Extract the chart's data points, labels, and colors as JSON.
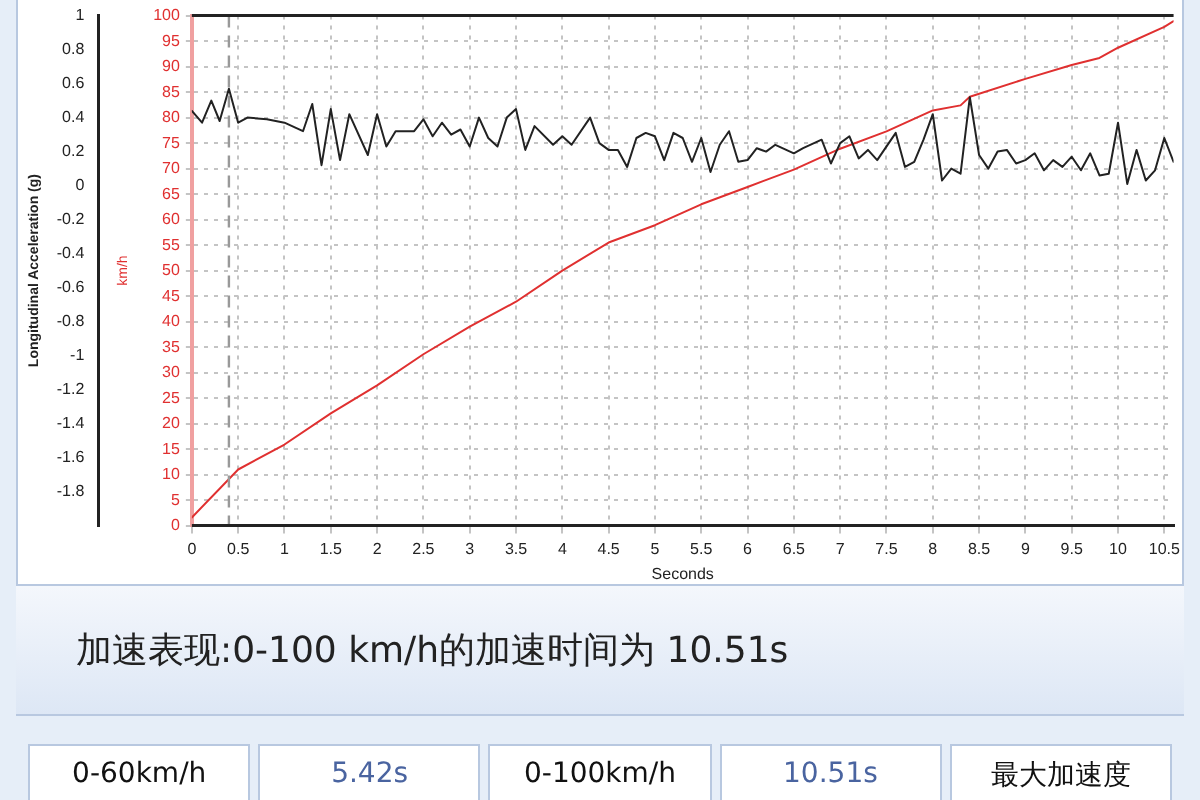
{
  "chart_data": {
    "type": "line",
    "xlabel": "Seconds",
    "ylabel": "Longitudinal Acceleration (g)",
    "y2label": "km/h",
    "xlim": [
      0,
      10.6
    ],
    "xticks": [
      0,
      0.5,
      1,
      1.5,
      2,
      2.5,
      3,
      3.5,
      4,
      4.5,
      5,
      5.5,
      6,
      6.5,
      7,
      7.5,
      8,
      8.5,
      9,
      9.5,
      10,
      10.5
    ],
    "ylim": [
      -2,
      1
    ],
    "yticks": [
      1,
      0.8,
      0.6,
      0.4,
      0.2,
      0,
      -0.2,
      -0.4,
      -0.6,
      -0.8,
      -1,
      -1.2,
      -1.4,
      -1.6,
      -1.8
    ],
    "y2lim": [
      0,
      100
    ],
    "y2ticks": [
      0,
      5,
      10,
      15,
      20,
      25,
      30,
      35,
      40,
      45,
      50,
      55,
      60,
      65,
      70,
      75,
      80,
      85,
      90,
      95,
      100
    ],
    "grid": true,
    "legend": false,
    "marker": "none",
    "line_style": "solid",
    "series": [
      {
        "color": "#222222",
        "axis": "y",
        "x": [
          0,
          0.11,
          0.21,
          0.3,
          0.4,
          0.5,
          0.6,
          0.81,
          1,
          1.2,
          1.3,
          1.4,
          1.5,
          1.6,
          1.7,
          1.9,
          2,
          2.1,
          2.2,
          2.4,
          2.5,
          2.6,
          2.7,
          2.8,
          2.9,
          3,
          3.1,
          3.2,
          3.3,
          3.4,
          3.5,
          3.6,
          3.7,
          3.9,
          4,
          4.1,
          4.3,
          4.4,
          4.5,
          4.6,
          4.7,
          4.8,
          4.9,
          5,
          5.1,
          5.2,
          5.3,
          5.4,
          5.5,
          5.6,
          5.7,
          5.8,
          5.9,
          6,
          6.1,
          6.2,
          6.3,
          6.5,
          6.6,
          6.8,
          6.9,
          7,
          7.1,
          7.2,
          7.3,
          7.4,
          7.6,
          7.7,
          7.8,
          7.9,
          8,
          8.1,
          8.2,
          8.3,
          8.4,
          8.5,
          8.6,
          8.7,
          8.8,
          8.9,
          9,
          9.1,
          9.2,
          9.3,
          9.4,
          9.5,
          9.6,
          9.7,
          9.8,
          9.9,
          10,
          10.1,
          10.2,
          10.3,
          10.4,
          10.5,
          10.6
        ],
        "values": [
          0.44,
          0.37,
          0.5,
          0.38,
          0.57,
          0.37,
          0.4,
          0.39,
          0.37,
          0.32,
          0.48,
          0.12,
          0.45,
          0.15,
          0.42,
          0.18,
          0.42,
          0.23,
          0.32,
          0.32,
          0.39,
          0.29,
          0.37,
          0.3,
          0.33,
          0.23,
          0.4,
          0.28,
          0.23,
          0.4,
          0.45,
          0.21,
          0.35,
          0.24,
          0.29,
          0.24,
          0.4,
          0.25,
          0.21,
          0.21,
          0.11,
          0.28,
          0.31,
          0.29,
          0.15,
          0.31,
          0.28,
          0.14,
          0.28,
          0.08,
          0.24,
          0.32,
          0.14,
          0.15,
          0.22,
          0.2,
          0.24,
          0.19,
          0.22,
          0.27,
          0.13,
          0.25,
          0.29,
          0.16,
          0.21,
          0.15,
          0.31,
          0.11,
          0.14,
          0.27,
          0.42,
          0.03,
          0.1,
          0.07,
          0.52,
          0.18,
          0.1,
          0.2,
          0.21,
          0.13,
          0.15,
          0.19,
          0.09,
          0.15,
          0.11,
          0.17,
          0.09,
          0.19,
          0.06,
          0.07,
          0.37,
          0.01,
          0.21,
          0.03,
          0.09,
          0.28,
          0.14
        ]
      },
      {
        "color": "#e03030",
        "axis": "y2",
        "x": [
          0,
          0.5,
          1,
          1.5,
          2,
          2.5,
          3,
          3.5,
          4,
          4.5,
          5,
          5.5,
          6,
          6.5,
          7,
          7.5,
          8,
          8.3,
          8.4,
          9,
          9.5,
          9.8,
          10,
          10.5,
          10.6
        ],
        "values": [
          1.6,
          11,
          15.9,
          22,
          27.5,
          33.6,
          39,
          43.9,
          50,
          55.5,
          58.9,
          63,
          66.4,
          69.8,
          73.9,
          77.3,
          81.4,
          82.4,
          84.1,
          87.6,
          90.3,
          91.7,
          93.7,
          97.8,
          98.9
        ]
      }
    ],
    "ref_lines": [
      {
        "axis": "x",
        "value": 0.4,
        "color": "#999999",
        "line_style": "dashed"
      }
    ],
    "annotations": [
      "加速表现:0-100 km/h的加速时间为 10.51s",
      "0-60km/h",
      "5.42s",
      "0-100km/h",
      "10.51s",
      "最大加速度"
    ]
  }
}
